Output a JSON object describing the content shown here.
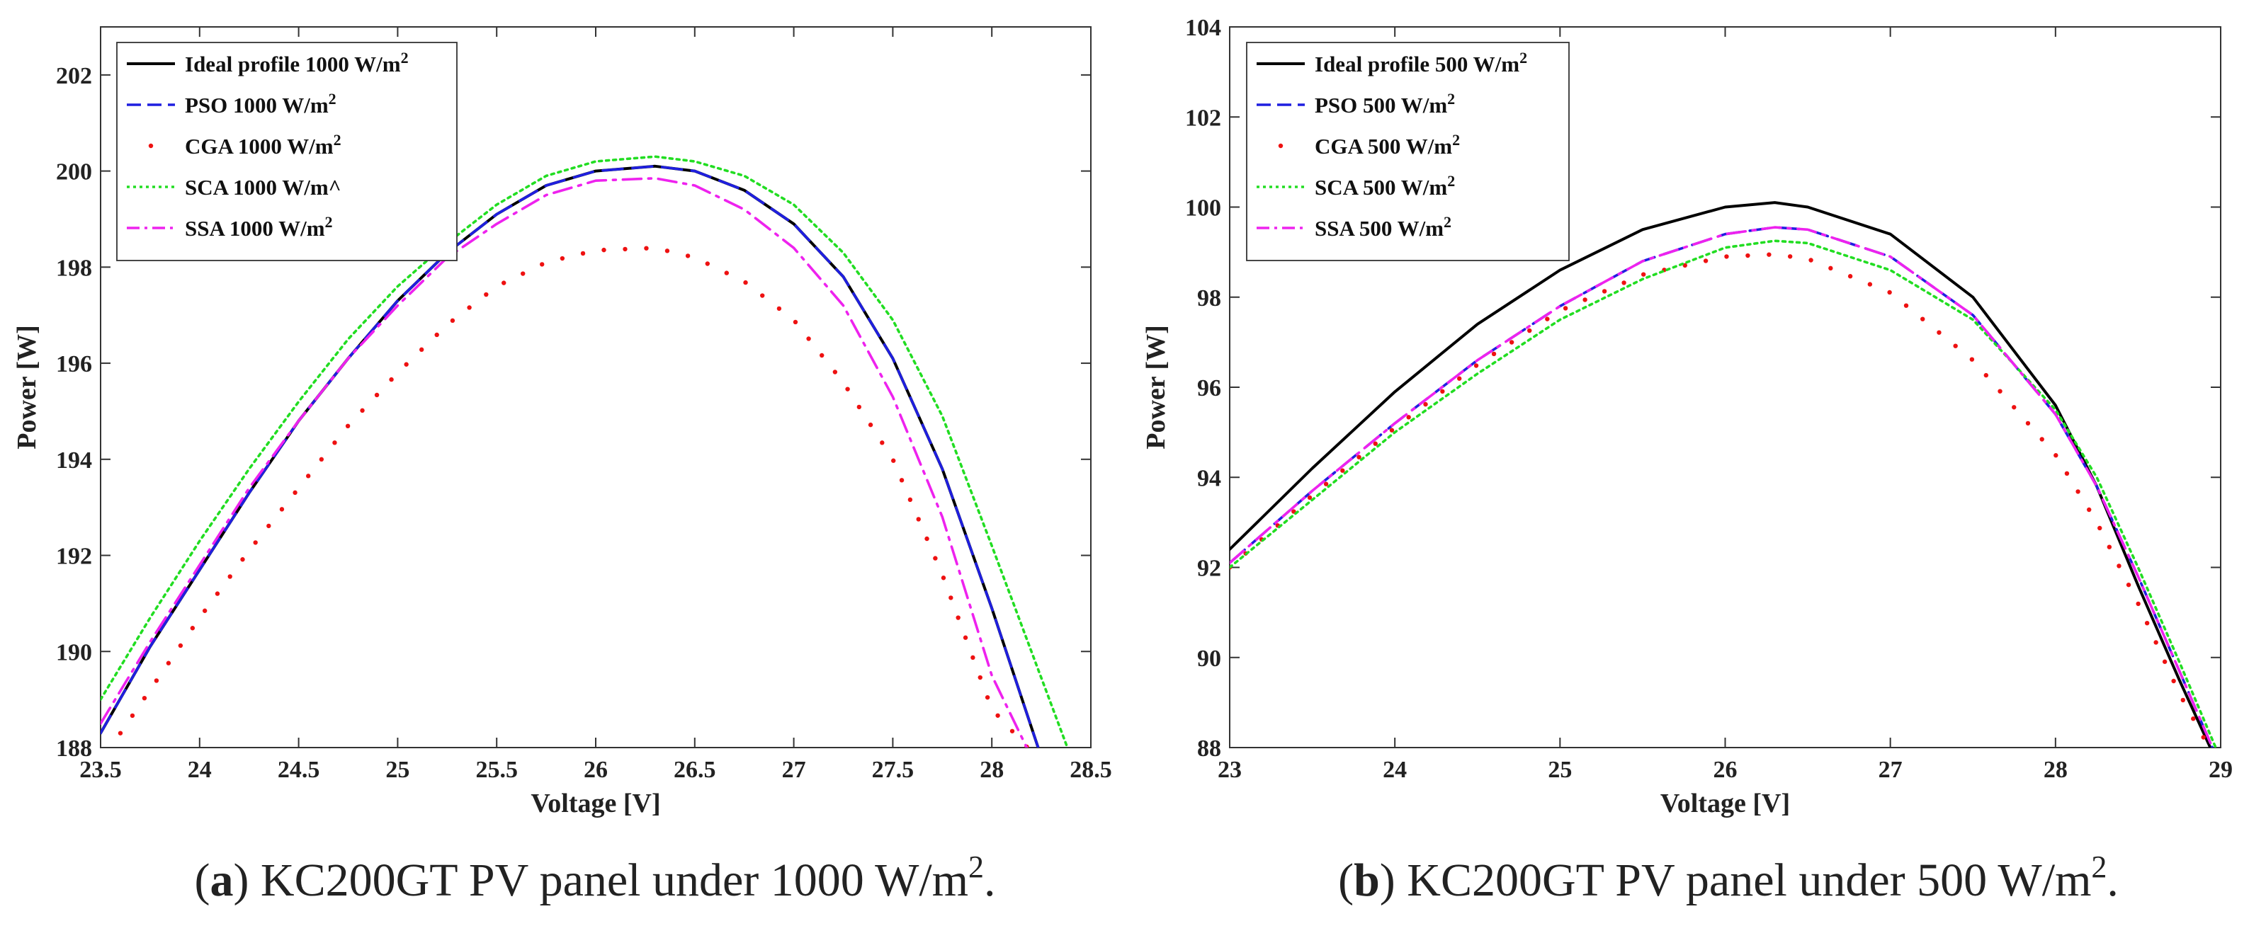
{
  "chart_data": [
    {
      "type": "line",
      "panel_label": "a",
      "caption": "KC200GT PV panel under 1000 W/m",
      "caption_sup": "2",
      "caption_end": ".",
      "xlabel": "Voltage [V]",
      "ylabel": "Power [W]",
      "xlim": [
        23.5,
        28.5
      ],
      "ylim": [
        188,
        203
      ],
      "xticks": [
        23.5,
        24,
        24.5,
        25,
        25.5,
        26,
        26.5,
        27,
        27.5,
        28,
        28.5
      ],
      "xtick_labels": [
        "23.5",
        "24",
        "24.5",
        "25",
        "25.5",
        "26",
        "26.5",
        "27",
        "27.5",
        "28",
        "28.5"
      ],
      "yticks": [
        188,
        190,
        192,
        194,
        196,
        198,
        200,
        202
      ],
      "ytick_labels": [
        "188",
        "190",
        "192",
        "194",
        "196",
        "198",
        "200",
        "202"
      ],
      "grid": false,
      "legend_position": "top-left",
      "series": [
        {
          "name": "Ideal profile 1000 W/m",
          "name_sup": "2",
          "color": "#000000",
          "style": "solid",
          "x": [
            23.5,
            23.75,
            24.0,
            24.25,
            24.5,
            24.75,
            25.0,
            25.25,
            25.5,
            25.75,
            26.0,
            26.3,
            26.5,
            26.75,
            27.0,
            27.25,
            27.5,
            27.75,
            28.0,
            28.25
          ],
          "y": [
            188.3,
            190.1,
            191.7,
            193.3,
            194.8,
            196.1,
            197.3,
            198.3,
            199.1,
            199.7,
            200.0,
            200.1,
            200.0,
            199.6,
            198.9,
            197.8,
            196.1,
            193.8,
            190.9,
            187.8
          ]
        },
        {
          "name": "PSO 1000 W/m",
          "name_sup": "2",
          "color": "#1f1fe0",
          "style": "dashed",
          "x": [
            23.5,
            23.75,
            24.0,
            24.25,
            24.5,
            24.75,
            25.0,
            25.25,
            25.5,
            25.75,
            26.0,
            26.3,
            26.5,
            26.75,
            27.0,
            27.25,
            27.5,
            27.75,
            28.0,
            28.25
          ],
          "y": [
            188.3,
            190.1,
            191.7,
            193.3,
            194.8,
            196.1,
            197.3,
            198.3,
            199.1,
            199.7,
            200.0,
            200.1,
            200.0,
            199.6,
            198.9,
            197.8,
            196.1,
            193.8,
            190.9,
            187.8
          ]
        },
        {
          "name": "CGA 1000 W/m",
          "name_sup": "2",
          "color": "#ee1111",
          "style": "dotted-sparse",
          "x": [
            23.6,
            23.8,
            24.0,
            24.25,
            24.5,
            24.75,
            25.0,
            25.25,
            25.5,
            25.75,
            26.0,
            26.3,
            26.5,
            26.75,
            27.0,
            27.25,
            27.5,
            27.75,
            28.0,
            28.18
          ],
          "y": [
            188.3,
            189.5,
            190.7,
            192.1,
            193.4,
            194.7,
            195.8,
            196.8,
            197.6,
            198.1,
            198.35,
            198.4,
            198.2,
            197.7,
            196.9,
            195.6,
            194.0,
            191.6,
            188.8,
            188.0
          ]
        },
        {
          "name": "SCA 1000 W/m^",
          "name_sup": "",
          "color": "#22dd22",
          "style": "dotted",
          "x": [
            23.5,
            23.75,
            24.0,
            24.25,
            24.5,
            24.75,
            25.0,
            25.25,
            25.5,
            25.75,
            26.0,
            26.3,
            26.5,
            26.75,
            27.0,
            27.25,
            27.5,
            27.75,
            28.0,
            28.2,
            28.4
          ],
          "y": [
            189.0,
            190.7,
            192.3,
            193.8,
            195.2,
            196.5,
            197.6,
            198.5,
            199.3,
            199.9,
            200.2,
            200.3,
            200.2,
            199.9,
            199.3,
            198.3,
            196.9,
            194.9,
            192.2,
            190.0,
            187.8
          ]
        },
        {
          "name": "SSA 1000 W/m",
          "name_sup": "2",
          "color": "#ee22ee",
          "style": "dashdot",
          "x": [
            23.5,
            23.75,
            24.0,
            24.25,
            24.5,
            24.75,
            25.0,
            25.25,
            25.5,
            25.75,
            26.0,
            26.3,
            26.5,
            26.75,
            27.0,
            27.25,
            27.5,
            27.75,
            28.0,
            28.2
          ],
          "y": [
            188.5,
            190.2,
            191.8,
            193.4,
            194.8,
            196.1,
            197.2,
            198.2,
            198.9,
            199.5,
            199.8,
            199.85,
            199.7,
            199.2,
            198.4,
            197.2,
            195.3,
            192.8,
            189.5,
            187.8
          ]
        }
      ]
    },
    {
      "type": "line",
      "panel_label": "b",
      "caption": "KC200GT PV panel under 500 W/m",
      "caption_sup": "2",
      "caption_end": ".",
      "xlabel": "Voltage [V]",
      "ylabel": "Power [W]",
      "xlim": [
        23,
        29
      ],
      "ylim": [
        88,
        104
      ],
      "xticks": [
        23,
        24,
        25,
        26,
        27,
        28,
        29
      ],
      "xtick_labels": [
        "23",
        "24",
        "25",
        "26",
        "27",
        "28",
        "29"
      ],
      "yticks": [
        88,
        90,
        92,
        94,
        96,
        98,
        100,
        102,
        104
      ],
      "ytick_labels": [
        "88",
        "90",
        "92",
        "94",
        "96",
        "98",
        "100",
        "102",
        "104"
      ],
      "grid": false,
      "legend_position": "top-left",
      "series": [
        {
          "name": "Ideal profile 500 W/m",
          "name_sup": "2",
          "color": "#000000",
          "style": "solid",
          "x": [
            23.0,
            23.5,
            24.0,
            24.5,
            25.0,
            25.5,
            26.0,
            26.3,
            26.5,
            27.0,
            27.5,
            28.0,
            28.25,
            28.5,
            28.75,
            28.95
          ],
          "y": [
            92.4,
            94.2,
            95.9,
            97.4,
            98.6,
            99.5,
            100.0,
            100.1,
            100.0,
            99.4,
            98.0,
            95.6,
            93.8,
            91.6,
            89.5,
            87.9
          ]
        },
        {
          "name": "PSO 500 W/m",
          "name_sup": "2",
          "color": "#1f1fe0",
          "style": "dashed",
          "x": [
            23.0,
            23.5,
            24.0,
            24.5,
            25.0,
            25.5,
            26.0,
            26.3,
            26.5,
            27.0,
            27.5,
            28.0,
            28.25,
            28.5,
            28.75,
            28.95
          ],
          "y": [
            92.1,
            93.7,
            95.2,
            96.6,
            97.8,
            98.8,
            99.4,
            99.55,
            99.5,
            98.9,
            97.6,
            95.4,
            93.8,
            91.8,
            89.7,
            88.0
          ]
        },
        {
          "name": "CGA 500 W/m",
          "name_sup": "2",
          "color": "#ee1111",
          "style": "dotted-sparse",
          "x": [
            23.0,
            23.5,
            24.0,
            24.5,
            25.0,
            25.5,
            26.0,
            26.3,
            26.5,
            27.0,
            27.5,
            28.0,
            28.25,
            28.5,
            28.75,
            28.93
          ],
          "y": [
            92.0,
            93.6,
            95.1,
            96.5,
            97.7,
            98.5,
            98.9,
            98.95,
            98.85,
            98.1,
            96.6,
            94.5,
            93.0,
            91.2,
            89.2,
            88.0
          ]
        },
        {
          "name": "SCA 500 W/m",
          "name_sup": "2",
          "color": "#22dd22",
          "style": "dotted",
          "x": [
            23.0,
            23.5,
            24.0,
            24.5,
            25.0,
            25.5,
            26.0,
            26.3,
            26.5,
            27.0,
            27.5,
            28.0,
            28.25,
            28.5,
            28.75,
            28.97
          ],
          "y": [
            92.0,
            93.5,
            95.0,
            96.3,
            97.5,
            98.4,
            99.1,
            99.25,
            99.2,
            98.6,
            97.5,
            95.5,
            94.0,
            92.0,
            89.9,
            88.0
          ]
        },
        {
          "name": "SSA 500 W/m",
          "name_sup": "2",
          "color": "#ee22ee",
          "style": "dashdot",
          "x": [
            23.0,
            23.5,
            24.0,
            24.5,
            25.0,
            25.5,
            26.0,
            26.3,
            26.5,
            27.0,
            27.5,
            28.0,
            28.25,
            28.5,
            28.75,
            28.95
          ],
          "y": [
            92.1,
            93.7,
            95.2,
            96.6,
            97.8,
            98.8,
            99.4,
            99.55,
            99.5,
            98.9,
            97.6,
            95.4,
            93.8,
            91.8,
            89.7,
            88.0
          ]
        }
      ]
    }
  ]
}
